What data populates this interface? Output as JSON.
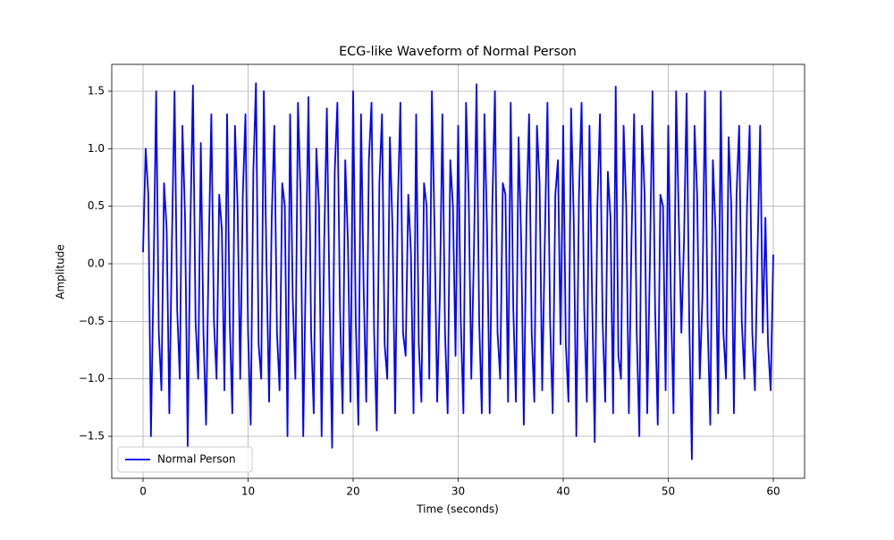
{
  "chart_data": {
    "type": "line",
    "title": "ECG-like Waveform of Normal Person",
    "x_label": "Time (seconds)",
    "y_label": "Amplitude",
    "xlim": [
      -2.98,
      62.98
    ],
    "ylim": [
      -1.865,
      1.733
    ],
    "xticks": [
      0,
      10,
      20,
      30,
      40,
      50,
      60
    ],
    "yticks": [
      {
        "value": -1.5,
        "label": "−1.5"
      },
      {
        "value": -1.0,
        "label": "−1.0"
      },
      {
        "value": -0.5,
        "label": "−0.5"
      },
      {
        "value": 0.0,
        "label": "0.0"
      },
      0.5,
      {
        "value": 1.0,
        "label": "1.0"
      },
      1.5
    ],
    "grid": true,
    "legend": "lower left",
    "x": [
      0,
      0.25,
      0.5,
      0.75,
      1,
      1.25,
      1.5,
      1.75,
      2,
      2.25,
      2.5,
      2.75,
      3,
      3.25,
      3.5,
      3.75,
      4,
      4.25,
      4.5,
      4.75,
      5,
      5.25,
      5.5,
      5.75,
      6,
      6.25,
      6.5,
      6.75,
      7,
      7.25,
      7.5,
      7.75,
      8,
      8.25,
      8.5,
      8.75,
      9,
      9.25,
      9.5,
      9.75,
      10,
      10.25,
      10.5,
      10.75,
      11,
      11.25,
      11.5,
      11.75,
      12,
      12.25,
      12.5,
      12.75,
      13,
      13.25,
      13.5,
      13.75,
      14,
      14.25,
      14.5,
      14.75,
      15,
      15.25,
      15.5,
      15.75,
      16,
      16.25,
      16.5,
      16.75,
      17,
      17.25,
      17.5,
      17.75,
      18,
      18.25,
      18.5,
      18.75,
      19,
      19.25,
      19.5,
      19.75,
      20,
      20.25,
      20.5,
      20.75,
      21,
      21.25,
      21.5,
      21.75,
      22,
      22.25,
      22.5,
      22.75,
      23,
      23.25,
      23.5,
      23.75,
      24,
      24.25,
      24.5,
      24.75,
      25,
      25.25,
      25.5,
      25.75,
      26,
      26.25,
      26.5,
      26.75,
      27,
      27.25,
      27.5,
      27.75,
      28,
      28.25,
      28.5,
      28.75,
      29,
      29.25,
      29.5,
      29.75,
      30,
      30.25,
      30.5,
      30.75,
      31,
      31.25,
      31.5,
      31.75,
      32,
      32.25,
      32.5,
      32.75,
      33,
      33.25,
      33.5,
      33.75,
      34,
      34.25,
      34.5,
      34.75,
      35,
      35.25,
      35.5,
      35.75,
      36,
      36.25,
      36.5,
      36.75,
      37,
      37.25,
      37.5,
      37.75,
      38,
      38.25,
      38.5,
      38.75,
      39,
      39.25,
      39.5,
      39.75,
      40,
      40.25,
      40.5,
      40.75,
      41,
      41.25,
      41.5,
      41.75,
      42,
      42.25,
      42.5,
      42.75,
      43,
      43.25,
      43.5,
      43.75,
      44,
      44.25,
      44.5,
      44.75,
      45,
      45.25,
      45.5,
      45.75,
      46,
      46.25,
      46.5,
      46.75,
      47,
      47.25,
      47.5,
      47.75,
      48,
      48.25,
      48.5,
      48.75,
      49,
      49.25,
      49.5,
      49.75,
      50,
      50.25,
      50.5,
      50.75,
      51,
      51.25,
      51.5,
      51.75,
      52,
      52.25,
      52.5,
      52.75,
      53,
      53.25,
      53.5,
      53.75,
      54,
      54.25,
      54.5,
      54.75,
      55,
      55.25,
      55.5,
      55.75,
      56,
      56.25,
      56.5,
      56.75,
      57,
      57.25,
      57.5,
      57.75,
      58,
      58.25,
      58.5,
      58.75,
      59,
      59.25,
      59.5,
      59.75,
      60
    ],
    "series": [
      {
        "name": "Normal Person",
        "color": "#0000ff",
        "values": [
          0.1,
          1.0,
          0.6,
          -1.5,
          -0.1,
          1.5,
          -0.6,
          -1.1,
          0.7,
          0.3,
          -1.3,
          0.2,
          1.5,
          -0.4,
          -1.0,
          1.2,
          0.4,
          -1.6,
          0.3,
          1.55,
          -0.5,
          -1.0,
          1.05,
          -0.6,
          -1.4,
          0.1,
          1.3,
          -0.5,
          -1.0,
          0.6,
          0.3,
          -1.1,
          1.3,
          -0.5,
          -1.3,
          1.2,
          0.5,
          -1.0,
          0.6,
          1.3,
          -0.6,
          -1.4,
          0.8,
          1.57,
          -0.7,
          -1.0,
          1.5,
          0.0,
          -1.2,
          0.4,
          1.2,
          -0.6,
          -1.1,
          0.7,
          0.5,
          -1.5,
          1.3,
          -0.3,
          -1.0,
          1.4,
          0.6,
          -1.5,
          0.0,
          1.45,
          -0.6,
          -1.3,
          1.0,
          0.5,
          -1.5,
          0.2,
          1.35,
          -0.3,
          -1.6,
          0.8,
          1.4,
          -0.4,
          -1.3,
          0.9,
          0.2,
          -1.2,
          1.5,
          -0.5,
          -1.4,
          1.3,
          -0.2,
          -1.2,
          0.9,
          1.4,
          -0.6,
          -1.45,
          0.7,
          1.3,
          -0.7,
          -1.0,
          1.1,
          0.3,
          -1.3,
          0.5,
          1.4,
          -0.6,
          -0.8,
          0.6,
          0.1,
          -1.3,
          1.3,
          -0.7,
          -1.2,
          0.7,
          0.5,
          -1.0,
          1.5,
          0.3,
          -1.2,
          -0.3,
          1.3,
          -0.6,
          -1.3,
          0.9,
          0.5,
          -0.8,
          1.2,
          -0.5,
          -1.3,
          1.4,
          0.6,
          -1.0,
          0.1,
          1.56,
          -0.5,
          -1.3,
          1.3,
          0.3,
          -1.3,
          0.5,
          1.5,
          -0.6,
          -1.0,
          0.7,
          0.6,
          -1.2,
          1.4,
          -0.4,
          -1.2,
          1.1,
          0.2,
          -1.4,
          0.4,
          1.3,
          -0.6,
          -1.2,
          1.2,
          0.7,
          -1.1,
          0.2,
          1.4,
          -0.5,
          -1.3,
          0.6,
          0.9,
          -0.7,
          1.2,
          -0.7,
          -1.2,
          1.35,
          0.4,
          -1.5,
          0.6,
          1.4,
          -0.4,
          -1.2,
          1.2,
          -0.3,
          -1.55,
          0.5,
          1.3,
          -0.5,
          -1.2,
          0.8,
          0.4,
          -1.3,
          1.54,
          -0.8,
          -1.0,
          1.2,
          0.5,
          -1.3,
          0.2,
          1.3,
          -0.6,
          -1.5,
          1.2,
          0.6,
          -1.3,
          0.0,
          1.5,
          -0.4,
          -1.4,
          0.6,
          0.5,
          -1.1,
          1.2,
          -0.3,
          -1.3,
          1.5,
          0.4,
          -0.6,
          0.2,
          1.48,
          -0.5,
          -1.7,
          1.2,
          0.6,
          -1.0,
          -0.3,
          1.5,
          -0.5,
          -1.4,
          0.9,
          0.3,
          -1.3,
          1.5,
          -0.6,
          -1.0,
          1.1,
          0.5,
          -1.3,
          0.6,
          1.2,
          -0.5,
          -1.0,
          0.5,
          1.2,
          -0.6,
          -1.1,
          0.1,
          1.2,
          -0.6,
          0.4,
          -0.7,
          -1.1,
          0.08
        ]
      }
    ]
  }
}
